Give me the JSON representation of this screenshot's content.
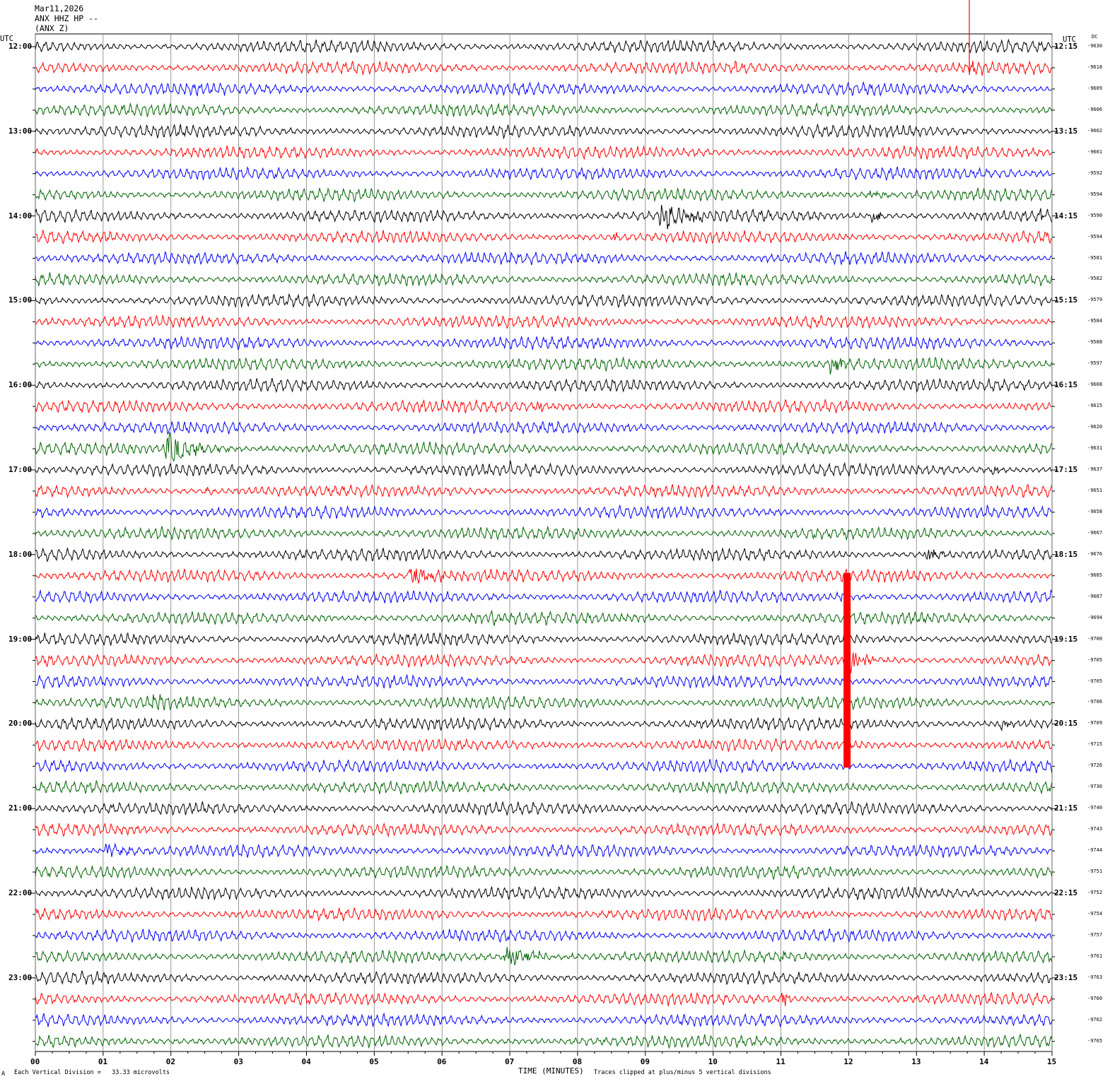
{
  "header": {
    "date": "Mar11,2026",
    "station": "ANX HHZ HP --",
    "component": "(ANX Z)"
  },
  "left_axis_label": "UTC",
  "right_axis_label": "UTC",
  "dc_label": "DC",
  "footer": {
    "scale_note": "Each Vertical Division =   33.33 microvolts",
    "xlabel": "TIME (MINUTES)",
    "clip_note": "Traces clipped at plus/minus 5 vertical divisions",
    "corner_mark": "A"
  },
  "chart_data": {
    "type": "line",
    "xlabel": "TIME (MINUTES)",
    "x_range": [
      0,
      15
    ],
    "x_ticks": [
      "00",
      "01",
      "02",
      "03",
      "04",
      "05",
      "06",
      "07",
      "08",
      "09",
      "10",
      "11",
      "12",
      "13",
      "14",
      "15"
    ],
    "trace_colors": [
      "#000000",
      "#ff0000",
      "#0000ff",
      "#006400"
    ],
    "trace_count": 48,
    "traces_per_hour": 4,
    "left_hour_labels": [
      "12:00",
      "13:00",
      "14:00",
      "15:00",
      "16:00",
      "17:00",
      "18:00",
      "19:00",
      "20:00",
      "21:00",
      "22:00",
      "23:00"
    ],
    "right_hour_labels": [
      "12:15",
      "13:15",
      "14:15",
      "15:15",
      "16:15",
      "17:15",
      "18:15",
      "19:15",
      "20:15",
      "21:15",
      "22:15",
      "23:15"
    ],
    "dc_offsets": [
      -9630,
      -9618,
      -9609,
      -9606,
      -9602,
      -9601,
      -9592,
      -9594,
      -9590,
      -9594,
      -9581,
      -9582,
      -9579,
      -9584,
      -9588,
      -9597,
      -9608,
      -9615,
      -9620,
      -9631,
      -9637,
      -9651,
      -9658,
      -9667,
      -9676,
      -9685,
      -9687,
      -9694,
      -9700,
      -9705,
      -9705,
      -9706,
      -9709,
      -9715,
      -9726,
      -9736,
      -9740,
      -9743,
      -9744,
      -9751,
      -9752,
      -9754,
      -9757,
      -9761,
      -9763,
      -9760,
      -9762,
      -9765
    ],
    "events": [
      {
        "trace": 0,
        "minute": 13.78,
        "amp": 40,
        "dur": 0.02,
        "spike": true
      },
      {
        "trace": 1,
        "minute": 10.3,
        "amp": 10,
        "dur": 0.3
      },
      {
        "trace": 1,
        "minute": 13.8,
        "amp": 10,
        "dur": 0.4
      },
      {
        "trace": 8,
        "minute": 9.2,
        "amp": 22,
        "dur": 1.2
      },
      {
        "trace": 8,
        "minute": 12.3,
        "amp": 14,
        "dur": 0.4
      },
      {
        "trace": 8,
        "minute": 14.8,
        "amp": 14,
        "dur": 0.25
      },
      {
        "trace": 7,
        "minute": 12.3,
        "amp": 6,
        "dur": 0.6
      },
      {
        "trace": 9,
        "minute": 0.9,
        "amp": 8,
        "dur": 0.4
      },
      {
        "trace": 9,
        "minute": 8.5,
        "amp": 9,
        "dur": 0.3
      },
      {
        "trace": 13,
        "minute": 11.4,
        "amp": 8,
        "dur": 0.3
      },
      {
        "trace": 15,
        "minute": 11.7,
        "amp": 12,
        "dur": 0.9
      },
      {
        "trace": 19,
        "minute": 1.9,
        "amp": 22,
        "dur": 1.2
      },
      {
        "trace": 17,
        "minute": 7.4,
        "amp": 9,
        "dur": 0.3
      },
      {
        "trace": 20,
        "minute": 6.9,
        "amp": 7,
        "dur": 0.7
      },
      {
        "trace": 20,
        "minute": 14.1,
        "amp": 9,
        "dur": 0.3
      },
      {
        "trace": 21,
        "minute": 2.5,
        "amp": 8,
        "dur": 0.3
      },
      {
        "trace": 24,
        "minute": 13.1,
        "amp": 12,
        "dur": 0.6
      },
      {
        "trace": 25,
        "minute": 5.5,
        "amp": 16,
        "dur": 1.0
      },
      {
        "trace": 26,
        "minute": 11.8,
        "amp": 10,
        "dur": 0.3
      },
      {
        "trace": 27,
        "minute": 6.7,
        "amp": 10,
        "dur": 0.4
      },
      {
        "trace": 29,
        "minute": 12.0,
        "amp": 18,
        "dur": 0.8
      },
      {
        "trace": 31,
        "minute": 1.7,
        "amp": 10,
        "dur": 0.6
      },
      {
        "trace": 32,
        "minute": 14.2,
        "amp": 10,
        "dur": 0.4
      },
      {
        "trace": 35,
        "minute": 6.0,
        "amp": 6,
        "dur": 0.2
      },
      {
        "trace": 37,
        "minute": 8.6,
        "amp": 10,
        "dur": 0.2
      },
      {
        "trace": 37,
        "minute": 11.5,
        "amp": 8,
        "dur": 0.2
      },
      {
        "trace": 38,
        "minute": 1.0,
        "amp": 14,
        "dur": 0.7
      },
      {
        "trace": 39,
        "minute": 11.3,
        "amp": 7,
        "dur": 0.2
      },
      {
        "trace": 43,
        "minute": 6.9,
        "amp": 18,
        "dur": 1.2
      },
      {
        "trace": 43,
        "minute": 11.0,
        "amp": 7,
        "dur": 0.5
      },
      {
        "trace": 45,
        "minute": 11.0,
        "amp": 16,
        "dur": 0.25
      }
    ],
    "big_event": {
      "trace_start": 25,
      "trace_end": 34,
      "minute": 11.93,
      "width_min": 0.1,
      "color": "#ff0000"
    }
  }
}
